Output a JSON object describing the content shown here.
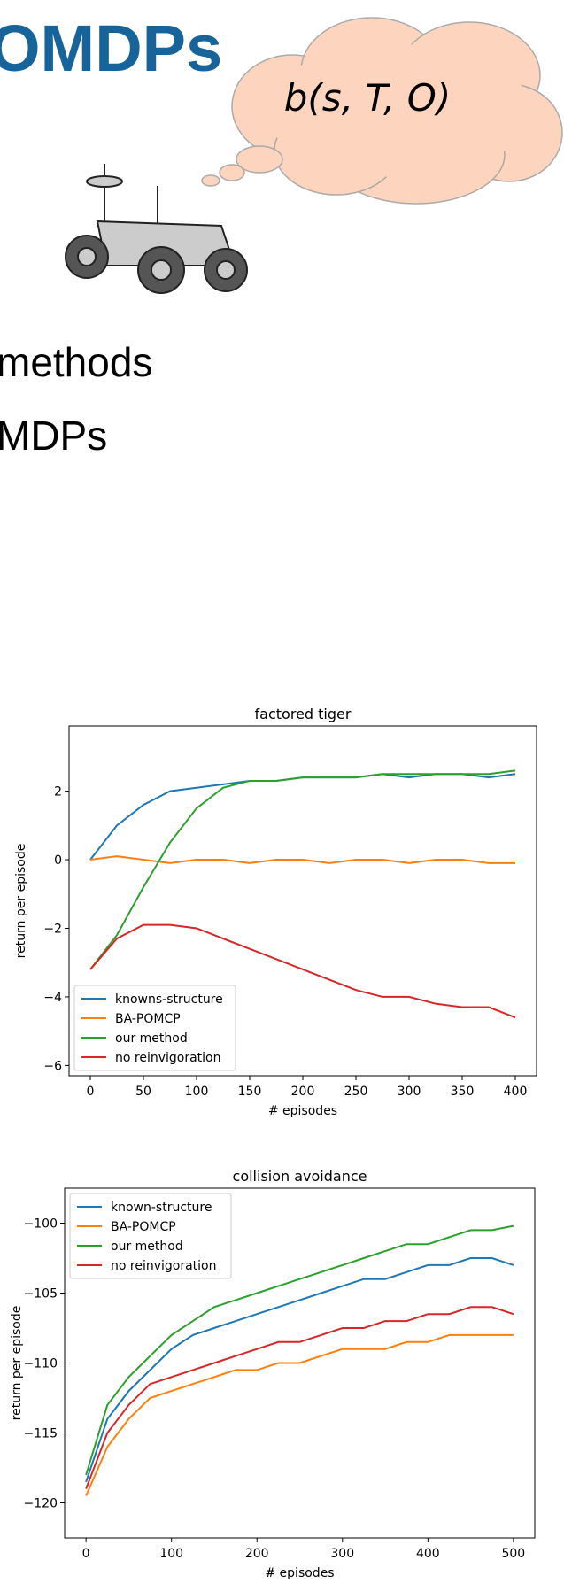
{
  "slide": {
    "title": "OMDPs",
    "thought": "b(s, T, O)",
    "bullets": [
      "methods",
      "MDPs"
    ]
  },
  "chart_data": [
    {
      "type": "line",
      "title": "factored tiger",
      "xlabel": "# episodes",
      "ylabel": "return per episode",
      "x": [
        0,
        25,
        50,
        75,
        100,
        125,
        150,
        175,
        200,
        225,
        250,
        275,
        300,
        325,
        350,
        375,
        400
      ],
      "xlim": [
        -20,
        420
      ],
      "xticks": [
        0,
        50,
        100,
        150,
        200,
        250,
        300,
        350,
        400
      ],
      "ylim": [
        -6.3,
        3.9
      ],
      "yticks": [
        {
          "value": -6,
          "label": "−6"
        },
        {
          "value": -4,
          "label": "−4"
        },
        {
          "value": -2,
          "label": "−2"
        },
        0,
        2
      ],
      "legend": "lower left",
      "series": [
        {
          "name": "knowns-structure",
          "color": "#1f77b4",
          "values": [
            0,
            1.0,
            1.6,
            2.0,
            2.1,
            2.2,
            2.3,
            2.3,
            2.4,
            2.4,
            2.4,
            2.5,
            2.4,
            2.5,
            2.5,
            2.4,
            2.5
          ]
        },
        {
          "name": "BA-POMCP",
          "color": "#ff7f0e",
          "values": [
            0,
            0.1,
            0,
            -0.1,
            0,
            0,
            -0.1,
            0,
            0,
            -0.1,
            0,
            0,
            -0.1,
            0,
            0,
            -0.1,
            -0.1
          ]
        },
        {
          "name": "our method",
          "color": "#2ca02c",
          "values": [
            -3.2,
            -2.2,
            -0.8,
            0.5,
            1.5,
            2.1,
            2.3,
            2.3,
            2.4,
            2.4,
            2.4,
            2.5,
            2.5,
            2.5,
            2.5,
            2.5,
            2.6
          ]
        },
        {
          "name": "no reinvigoration",
          "color": "#d62728",
          "values": [
            -3.2,
            -2.3,
            -1.9,
            -1.9,
            -2.0,
            -2.3,
            -2.6,
            -2.9,
            -3.2,
            -3.5,
            -3.8,
            -4.0,
            -4.0,
            -4.2,
            -4.3,
            -4.3,
            -4.6
          ]
        }
      ]
    },
    {
      "type": "line",
      "title": "collision avoidance",
      "xlabel": "# episodes",
      "ylabel": "return per episode",
      "x": [
        0,
        25,
        50,
        75,
        100,
        125,
        150,
        175,
        200,
        225,
        250,
        275,
        300,
        325,
        350,
        375,
        400,
        425,
        450,
        475,
        500
      ],
      "xlim": [
        -25,
        525
      ],
      "xticks": [
        0,
        100,
        200,
        300,
        400,
        500
      ],
      "ylim": [
        -122.5,
        -97.5
      ],
      "yticks": [
        {
          "value": -120,
          "label": "−120"
        },
        {
          "value": -115,
          "label": "−115"
        },
        {
          "value": -110,
          "label": "−110"
        },
        {
          "value": -105,
          "label": "−105"
        },
        {
          "value": -100,
          "label": "−100"
        }
      ],
      "legend": "upper left",
      "series": [
        {
          "name": "known-structure",
          "color": "#1f77b4",
          "values": [
            -118.5,
            -114,
            -112,
            -110.5,
            -109,
            -108,
            -107.5,
            -107,
            -106.5,
            -106,
            -105.5,
            -105,
            -104.5,
            -104,
            -104,
            -103.5,
            -103,
            -103,
            -102.5,
            -102.5,
            -103
          ]
        },
        {
          "name": "BA-POMCP",
          "color": "#ff7f0e",
          "values": [
            -119.5,
            -116,
            -114,
            -112.5,
            -112,
            -111.5,
            -111,
            -110.5,
            -110.5,
            -110,
            -110,
            -109.5,
            -109,
            -109,
            -109,
            -108.5,
            -108.5,
            -108,
            -108,
            -108,
            -108
          ]
        },
        {
          "name": "our method",
          "color": "#2ca02c",
          "values": [
            -118,
            -113,
            -111,
            -109.5,
            -108,
            -107,
            -106,
            -105.5,
            -105,
            -104.5,
            -104,
            -103.5,
            -103,
            -102.5,
            -102,
            -101.5,
            -101.5,
            -101,
            -100.5,
            -100.5,
            -100.2
          ]
        },
        {
          "name": "no reinvigoration",
          "color": "#d62728",
          "values": [
            -119,
            -115,
            -113,
            -111.5,
            -111,
            -110.5,
            -110,
            -109.5,
            -109,
            -108.5,
            -108.5,
            -108,
            -107.5,
            -107.5,
            -107,
            -107,
            -106.5,
            -106.5,
            -106,
            -106,
            -106.5
          ]
        }
      ]
    }
  ]
}
